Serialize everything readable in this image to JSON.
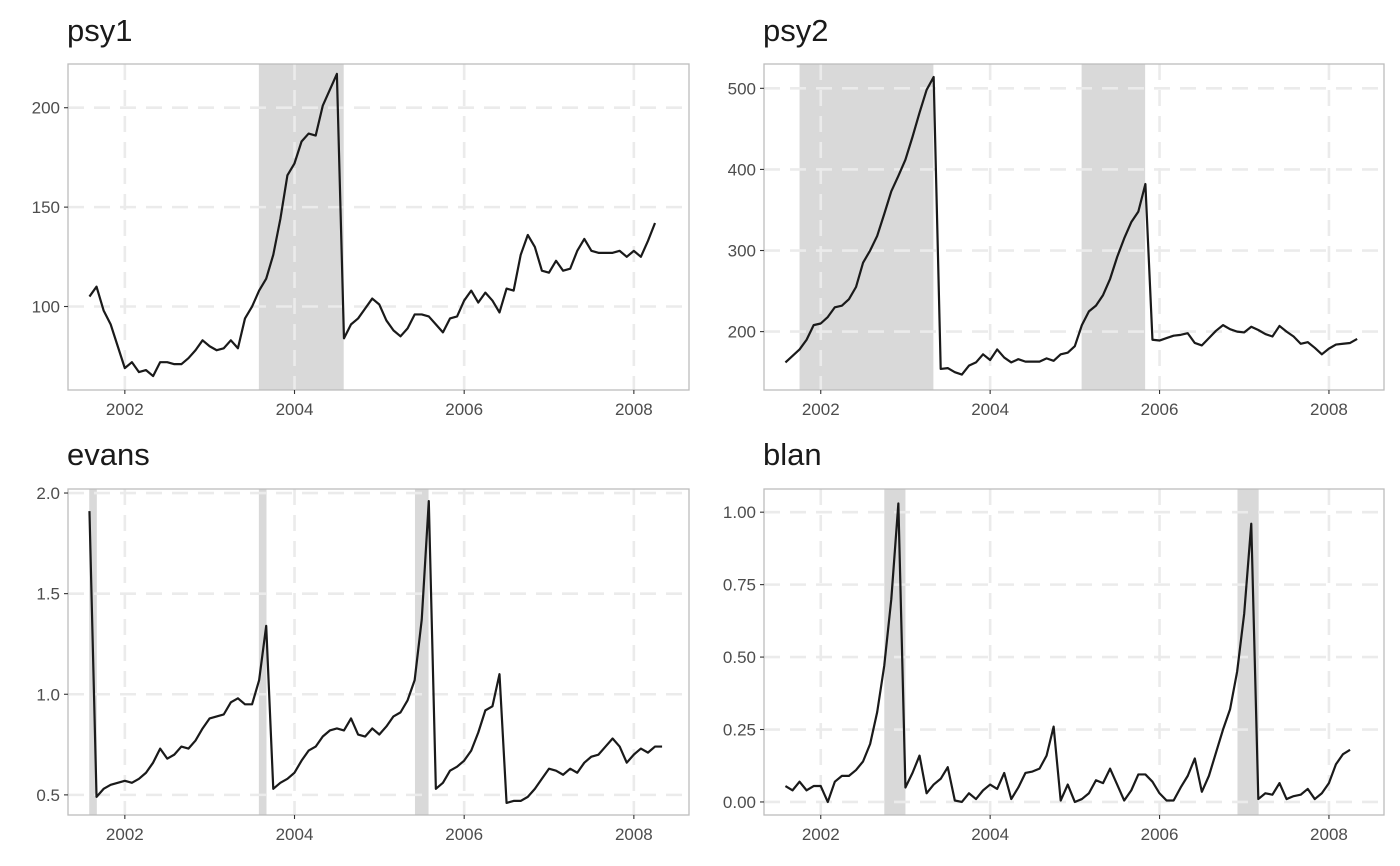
{
  "chart_data": [
    {
      "type": "line",
      "title": "psy1",
      "xlabel": "",
      "ylabel": "",
      "xlim": [
        2001.33,
        2008.65
      ],
      "ylim": [
        58,
        222
      ],
      "xticks": [
        2002,
        2004,
        2006,
        2008
      ],
      "xtick_labels": [
        "2002",
        "2004",
        "2006",
        "2008"
      ],
      "yticks": [
        100,
        150,
        200
      ],
      "ytick_labels": [
        "100",
        "150",
        "200"
      ],
      "grid": true,
      "shaded_periods": [
        [
          2003.58,
          2004.58
        ]
      ],
      "series": [
        {
          "x_start": 2001.583,
          "x_step": 0.08333,
          "values": [
            105,
            110,
            98,
            91,
            80,
            69,
            72,
            67,
            68,
            65,
            72,
            72,
            71,
            71,
            74,
            78,
            83,
            80,
            78,
            79,
            83,
            79,
            94,
            100,
            108,
            114,
            126,
            144,
            166,
            172,
            183,
            187,
            186,
            201,
            209,
            217,
            84,
            91,
            94,
            99,
            104,
            101,
            93,
            88,
            85,
            89,
            96,
            96,
            95,
            91,
            87,
            94,
            95,
            103,
            108,
            102,
            107,
            103,
            97,
            109,
            108,
            126,
            136,
            130,
            118,
            117,
            123,
            118,
            119,
            128,
            134,
            128,
            127,
            127,
            127,
            128,
            125,
            128,
            125,
            133,
            142
          ]
        }
      ]
    },
    {
      "type": "line",
      "title": "psy2",
      "xlabel": "",
      "ylabel": "",
      "xlim": [
        2001.33,
        2008.65
      ],
      "ylim": [
        128,
        530
      ],
      "xticks": [
        2002,
        2004,
        2006,
        2008
      ],
      "xtick_labels": [
        "2002",
        "2004",
        "2006",
        "2008"
      ],
      "yticks": [
        200,
        300,
        400,
        500
      ],
      "ytick_labels": [
        "200",
        "300",
        "400",
        "500"
      ],
      "grid": true,
      "shaded_periods": [
        [
          2001.75,
          2003.33
        ],
        [
          2005.08,
          2005.83
        ]
      ],
      "series": [
        {
          "x_start": 2001.583,
          "x_step": 0.08333,
          "values": [
            162,
            170,
            178,
            190,
            208,
            210,
            218,
            230,
            232,
            240,
            255,
            285,
            300,
            318,
            345,
            373,
            392,
            412,
            440,
            470,
            498,
            514,
            154,
            155,
            150,
            147,
            158,
            162,
            172,
            165,
            178,
            168,
            162,
            166,
            163,
            163,
            163,
            167,
            164,
            172,
            174,
            182,
            208,
            225,
            232,
            245,
            265,
            292,
            315,
            335,
            348,
            382,
            190,
            189,
            192,
            195,
            196,
            198,
            186,
            183,
            192,
            201,
            208,
            203,
            200,
            199,
            206,
            202,
            197,
            194,
            207,
            200,
            194,
            185,
            187,
            180,
            172,
            179,
            184,
            185,
            186,
            191
          ]
        }
      ]
    },
    {
      "type": "line",
      "title": "evans",
      "xlabel": "",
      "ylabel": "",
      "xlim": [
        2001.33,
        2008.65
      ],
      "ylim": [
        0.4,
        2.02
      ],
      "xticks": [
        2002,
        2004,
        2006,
        2008
      ],
      "xtick_labels": [
        "2002",
        "2004",
        "2006",
        "2008"
      ],
      "yticks": [
        0.5,
        1.0,
        1.5,
        2.0
      ],
      "ytick_labels": [
        "0.5",
        "1.0",
        "1.5",
        "2.0"
      ],
      "grid": true,
      "shaded_periods": [
        [
          2001.58,
          2001.67
        ],
        [
          2003.58,
          2003.67
        ],
        [
          2005.42,
          2005.58
        ]
      ],
      "series": [
        {
          "x_start": 2001.583,
          "x_step": 0.08333,
          "values": [
            1.91,
            0.49,
            0.53,
            0.55,
            0.56,
            0.57,
            0.56,
            0.58,
            0.61,
            0.66,
            0.73,
            0.68,
            0.7,
            0.74,
            0.73,
            0.77,
            0.83,
            0.88,
            0.89,
            0.9,
            0.96,
            0.98,
            0.95,
            0.95,
            1.07,
            1.34,
            0.53,
            0.56,
            0.58,
            0.61,
            0.67,
            0.72,
            0.74,
            0.79,
            0.82,
            0.83,
            0.82,
            0.88,
            0.8,
            0.79,
            0.83,
            0.8,
            0.84,
            0.89,
            0.91,
            0.97,
            1.07,
            1.37,
            1.96,
            0.53,
            0.56,
            0.62,
            0.64,
            0.67,
            0.72,
            0.81,
            0.92,
            0.94,
            1.1,
            0.46,
            0.47,
            0.47,
            0.49,
            0.53,
            0.58,
            0.63,
            0.62,
            0.6,
            0.63,
            0.61,
            0.66,
            0.69,
            0.7,
            0.74,
            0.78,
            0.74,
            0.66,
            0.7,
            0.73,
            0.71,
            0.74,
            0.74
          ]
        }
      ]
    },
    {
      "type": "line",
      "title": "blan",
      "xlabel": "",
      "ylabel": "",
      "xlim": [
        2001.33,
        2008.65
      ],
      "ylim": [
        -0.045,
        1.08
      ],
      "xticks": [
        2002,
        2004,
        2006,
        2008
      ],
      "xtick_labels": [
        "2002",
        "2004",
        "2006",
        "2008"
      ],
      "yticks": [
        0.0,
        0.25,
        0.5,
        0.75,
        1.0
      ],
      "ytick_labels": [
        "0.00",
        "0.25",
        "0.50",
        "0.75",
        "1.00"
      ],
      "grid": true,
      "shaded_periods": [
        [
          2002.75,
          2003.0
        ],
        [
          2006.92,
          2007.17
        ]
      ],
      "series": [
        {
          "x_start": 2001.583,
          "x_step": 0.08333,
          "values": [
            0.055,
            0.04,
            0.07,
            0.04,
            0.055,
            0.055,
            0.0,
            0.07,
            0.09,
            0.09,
            0.11,
            0.14,
            0.2,
            0.31,
            0.47,
            0.7,
            1.03,
            0.05,
            0.1,
            0.16,
            0.03,
            0.06,
            0.08,
            0.12,
            0.005,
            0.0,
            0.03,
            0.01,
            0.04,
            0.06,
            0.045,
            0.1,
            0.01,
            0.05,
            0.1,
            0.105,
            0.115,
            0.16,
            0.26,
            0.005,
            0.06,
            0.0,
            0.01,
            0.03,
            0.075,
            0.065,
            0.115,
            0.06,
            0.005,
            0.04,
            0.095,
            0.095,
            0.07,
            0.03,
            0.005,
            0.005,
            0.05,
            0.09,
            0.15,
            0.035,
            0.09,
            0.17,
            0.25,
            0.32,
            0.45,
            0.65,
            0.96,
            0.01,
            0.03,
            0.025,
            0.065,
            0.01,
            0.02,
            0.025,
            0.045,
            0.01,
            0.03,
            0.065,
            0.13,
            0.165,
            0.18
          ]
        }
      ]
    }
  ]
}
